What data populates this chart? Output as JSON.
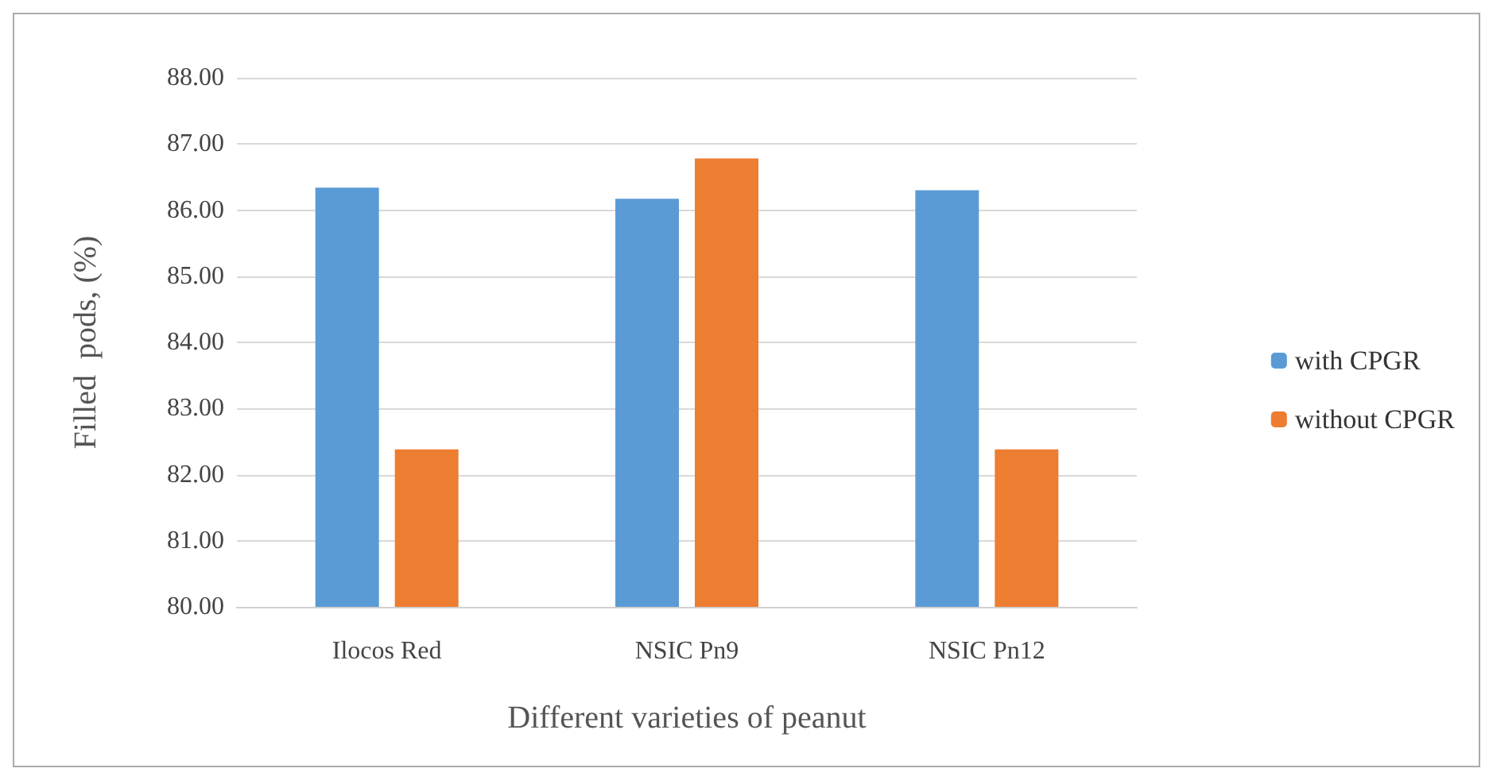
{
  "chart_data": {
    "type": "bar",
    "xlabel": "Different varieties of peanut",
    "ylabel": "Filled  pods, (%)",
    "categories": [
      "Ilocos Red",
      "NSIC Pn9",
      "NSIC Pn12"
    ],
    "series": [
      {
        "name": "with CPGR",
        "color": "#5b9bd5",
        "values": [
          86.34,
          86.17,
          86.3
        ]
      },
      {
        "name": "without CPGR",
        "color": "#ed7d31",
        "values": [
          82.38,
          86.78,
          82.38
        ]
      }
    ],
    "ylim": [
      80,
      88
    ],
    "yticks": [
      {
        "value": 80,
        "label": "80.00"
      },
      {
        "value": 81,
        "label": "81.00"
      },
      {
        "value": 82,
        "label": "82.00"
      },
      {
        "value": 83,
        "label": "83.00"
      },
      {
        "value": 84,
        "label": "84.00"
      },
      {
        "value": 85,
        "label": "85.00"
      },
      {
        "value": 86,
        "label": "86.00"
      },
      {
        "value": 87,
        "label": "87.00"
      },
      {
        "value": 88,
        "label": "88.00"
      }
    ],
    "grid": "y",
    "legend": "right"
  }
}
